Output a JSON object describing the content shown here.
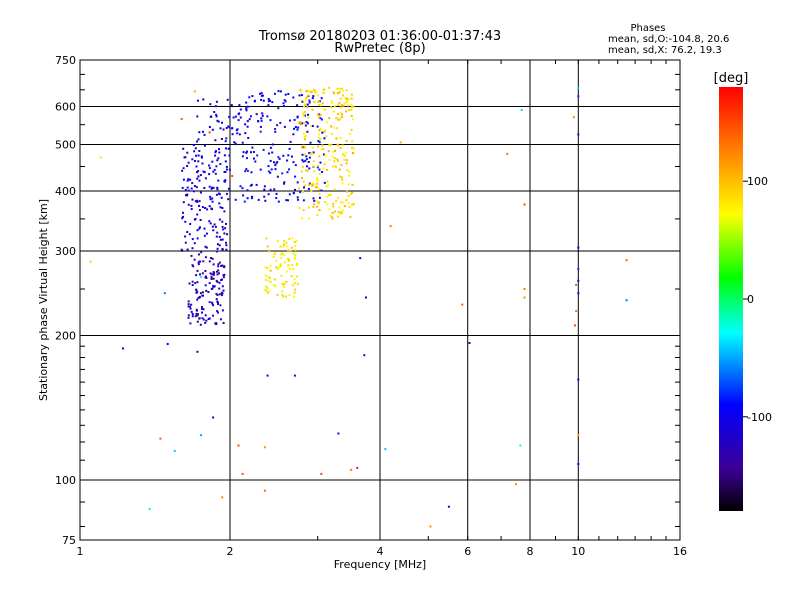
{
  "chart_data": {
    "type": "scatter",
    "title": "Tromsø 20180203 01:36:00-01:37:43",
    "subtitle": "RwPretec (8p)",
    "xlabel": "Frequency [MHz]",
    "ylabel": "Stationary phase Virtual Height [km]",
    "x_scale": "log",
    "y_scale": "log",
    "xlim": [
      1,
      16
    ],
    "ylim": [
      75,
      750
    ],
    "x_ticks": [
      1,
      2,
      4,
      6,
      8,
      10,
      16
    ],
    "x_tick_labels": [
      "1",
      "2",
      "4",
      "6",
      "8",
      "10",
      "16"
    ],
    "y_ticks": [
      75,
      100,
      200,
      300,
      400,
      500,
      600,
      750
    ],
    "y_tick_labels": [
      "75",
      "100",
      "200",
      "300",
      "400",
      "500",
      "600",
      "750"
    ],
    "grid": true,
    "stats": {
      "heading": "Phases",
      "line1": "mean, sd,O:-104.8, 20.6",
      "line2": "mean, sd,X:  76.2, 19.3"
    },
    "colorbar": {
      "label": "[deg]",
      "range": [
        -180,
        180
      ],
      "ticks": [
        100,
        0,
        -100
      ],
      "tick_labels": [
        "100",
        "0",
        "-100"
      ]
    },
    "clusters": [
      {
        "name": "O-trace lower",
        "fmin": 1.65,
        "fmax": 1.95,
        "hmin": 210,
        "hmax": 300,
        "phase": -125,
        "count": 140
      },
      {
        "name": "O-trace mid",
        "fmin": 1.6,
        "fmax": 2.0,
        "hmin": 300,
        "hmax": 500,
        "phase": -110,
        "count": 170
      },
      {
        "name": "O-trace upper",
        "fmin": 1.7,
        "fmax": 2.05,
        "hmin": 480,
        "hmax": 630,
        "phase": -110,
        "count": 40
      },
      {
        "name": "O-trace F2",
        "fmin": 2.05,
        "fmax": 3.1,
        "hmin": 380,
        "hmax": 650,
        "phase": -100,
        "count": 220
      },
      {
        "name": "X-trace lower",
        "fmin": 2.35,
        "fmax": 2.75,
        "hmin": 240,
        "hmax": 320,
        "phase": 80,
        "count": 90
      },
      {
        "name": "X-trace F2",
        "fmin": 2.75,
        "fmax": 3.55,
        "hmin": 350,
        "hmax": 660,
        "phase": 88,
        "count": 260
      }
    ],
    "points": [
      {
        "x": 1.05,
        "y": 285,
        "phase": 50
      },
      {
        "x": 1.1,
        "y": 470,
        "phase": 60
      },
      {
        "x": 1.22,
        "y": 188,
        "phase": -110
      },
      {
        "x": 1.38,
        "y": 87,
        "phase": -30
      },
      {
        "x": 1.45,
        "y": 122,
        "phase": 140
      },
      {
        "x": 1.48,
        "y": 245,
        "phase": -60
      },
      {
        "x": 1.5,
        "y": 192,
        "phase": -100
      },
      {
        "x": 1.55,
        "y": 115,
        "phase": -40
      },
      {
        "x": 1.6,
        "y": 565,
        "phase": 140
      },
      {
        "x": 1.7,
        "y": 645,
        "phase": 110
      },
      {
        "x": 1.72,
        "y": 185,
        "phase": -120
      },
      {
        "x": 1.75,
        "y": 124,
        "phase": -50
      },
      {
        "x": 1.75,
        "y": 265,
        "phase": -30
      },
      {
        "x": 1.85,
        "y": 135,
        "phase": -120
      },
      {
        "x": 1.82,
        "y": 530,
        "phase": 150
      },
      {
        "x": 1.93,
        "y": 92,
        "phase": 120
      },
      {
        "x": 2.02,
        "y": 430,
        "phase": 150
      },
      {
        "x": 2.08,
        "y": 118,
        "phase": 150
      },
      {
        "x": 2.12,
        "y": 103,
        "phase": 150
      },
      {
        "x": 2.35,
        "y": 117,
        "phase": 120
      },
      {
        "x": 2.35,
        "y": 95,
        "phase": 140
      },
      {
        "x": 2.38,
        "y": 165,
        "phase": -120
      },
      {
        "x": 2.7,
        "y": 165,
        "phase": -110
      },
      {
        "x": 3.05,
        "y": 103,
        "phase": 150
      },
      {
        "x": 3.3,
        "y": 125,
        "phase": -110
      },
      {
        "x": 3.5,
        "y": 105,
        "phase": 130
      },
      {
        "x": 3.6,
        "y": 106,
        "phase": 170
      },
      {
        "x": 3.65,
        "y": 290,
        "phase": -100
      },
      {
        "x": 3.72,
        "y": 182,
        "phase": -120
      },
      {
        "x": 3.75,
        "y": 240,
        "phase": -110
      },
      {
        "x": 4.1,
        "y": 116,
        "phase": -40
      },
      {
        "x": 4.2,
        "y": 338,
        "phase": 130
      },
      {
        "x": 4.4,
        "y": 505,
        "phase": 110
      },
      {
        "x": 5.05,
        "y": 80,
        "phase": 120
      },
      {
        "x": 5.5,
        "y": 88,
        "phase": -110
      },
      {
        "x": 5.85,
        "y": 232,
        "phase": 140
      },
      {
        "x": 6.05,
        "y": 193,
        "phase": -140
      },
      {
        "x": 7.2,
        "y": 478,
        "phase": 130
      },
      {
        "x": 7.5,
        "y": 98,
        "phase": 120
      },
      {
        "x": 7.65,
        "y": 118,
        "phase": -30
      },
      {
        "x": 7.7,
        "y": 590,
        "phase": -40
      },
      {
        "x": 7.8,
        "y": 375,
        "phase": 150
      },
      {
        "x": 7.8,
        "y": 250,
        "phase": 130
      },
      {
        "x": 7.8,
        "y": 240,
        "phase": 120
      },
      {
        "x": 9.8,
        "y": 570,
        "phase": 120
      },
      {
        "x": 9.85,
        "y": 210,
        "phase": 150
      },
      {
        "x": 9.9,
        "y": 225,
        "phase": 130
      },
      {
        "x": 9.9,
        "y": 255,
        "phase": 140
      },
      {
        "x": 10.0,
        "y": 655,
        "phase": -40
      },
      {
        "x": 10.0,
        "y": 630,
        "phase": -80
      },
      {
        "x": 10.0,
        "y": 525,
        "phase": -120
      },
      {
        "x": 10.0,
        "y": 305,
        "phase": -100
      },
      {
        "x": 10.0,
        "y": 275,
        "phase": -80
      },
      {
        "x": 10.0,
        "y": 260,
        "phase": -90
      },
      {
        "x": 10.0,
        "y": 245,
        "phase": -100
      },
      {
        "x": 10.0,
        "y": 162,
        "phase": -90
      },
      {
        "x": 10.0,
        "y": 108,
        "phase": -100
      },
      {
        "x": 10.0,
        "y": 124,
        "phase": 110
      },
      {
        "x": 12.5,
        "y": 287,
        "phase": 140
      },
      {
        "x": 12.5,
        "y": 237,
        "phase": -60
      }
    ]
  }
}
